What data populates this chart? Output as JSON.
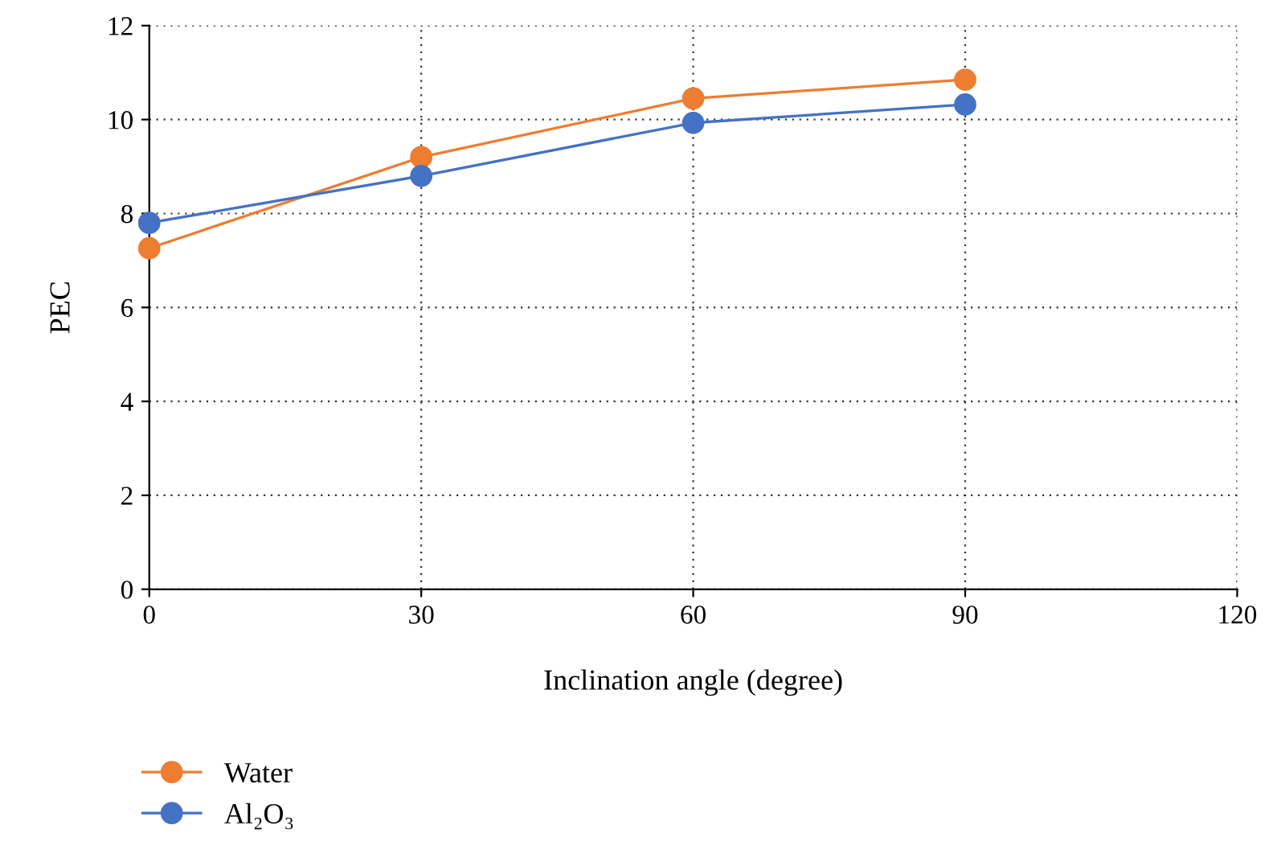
{
  "chart_data": {
    "type": "line",
    "xlabel": "Inclination angle (degree)",
    "ylabel": "PEC",
    "x": [
      0,
      30,
      60,
      90
    ],
    "series": [
      {
        "name": "Water",
        "color": "#ed7d31",
        "values": [
          7.26,
          9.2,
          10.45,
          10.85
        ]
      },
      {
        "name": "Al₂O₃",
        "color": "#4472c4",
        "values": [
          7.8,
          8.8,
          9.93,
          10.32
        ]
      }
    ],
    "xlim": [
      0,
      120
    ],
    "xticks": [
      0,
      30,
      60,
      90,
      120
    ],
    "ylim": [
      0,
      12
    ],
    "yticks": [
      0,
      2,
      4,
      6,
      8,
      10,
      12
    ],
    "grid": true,
    "legend": "bottom left",
    "marker": "circle",
    "line_style": "solid"
  }
}
